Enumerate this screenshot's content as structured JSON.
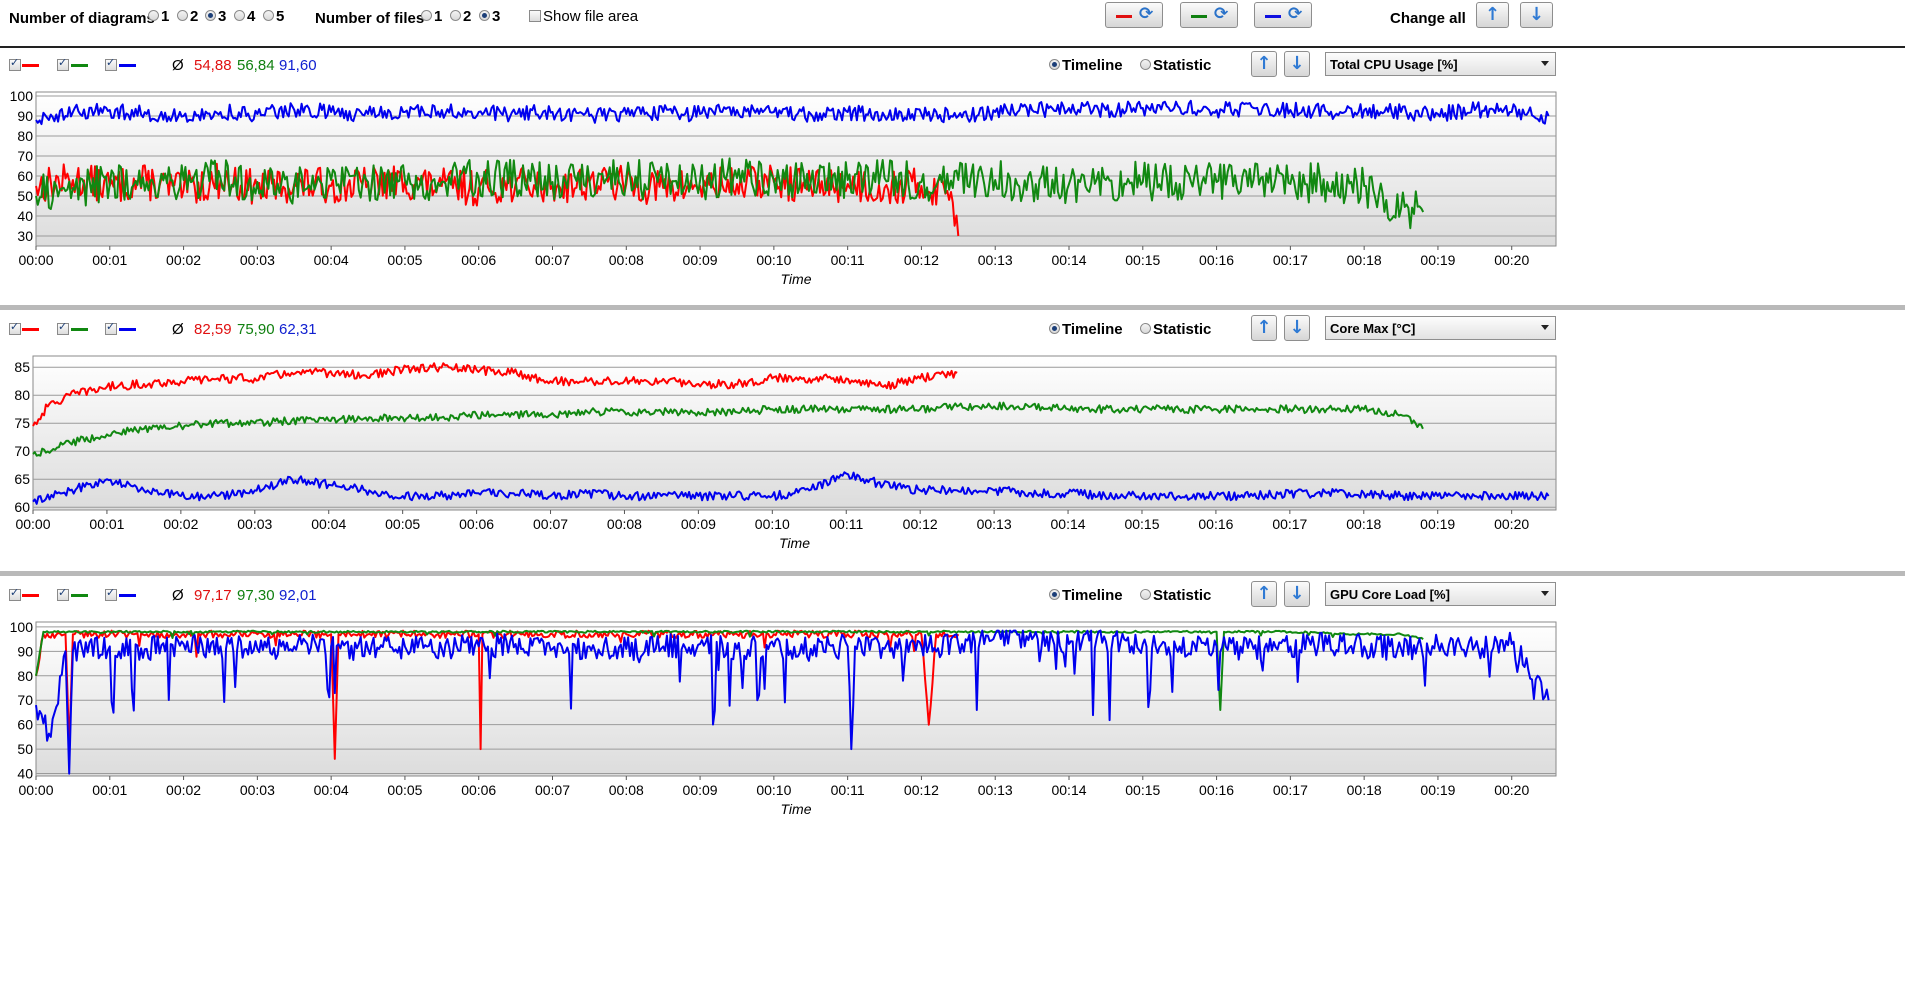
{
  "toolbar": {
    "num_diagrams_label": "Number of diagrams",
    "diagram_options": [
      "1",
      "2",
      "3",
      "4",
      "5"
    ],
    "diagram_selected": "3",
    "num_files_label": "Number of files",
    "file_options": [
      "1",
      "2",
      "3"
    ],
    "file_selected": "3",
    "show_file_area_label": "Show file area",
    "show_file_area_checked": false,
    "change_all_label": "Change all",
    "swap_buttons": [
      {
        "color": "#e01010",
        "icon": "refresh-icon"
      },
      {
        "color": "#108010",
        "icon": "refresh-icon"
      },
      {
        "color": "#1010e0",
        "icon": "refresh-icon"
      }
    ]
  },
  "colors": {
    "red": "#ff0000",
    "green": "#118811",
    "blue": "#0000ee",
    "avg_red": "#e01010",
    "avg_green": "#108010",
    "avg_blue": "#1020d0"
  },
  "avg_symbol": "Ø",
  "view_options": {
    "timeline": "Timeline",
    "statistic": "Statistic"
  },
  "panels": [
    {
      "id": "cpu",
      "metric": "Total CPU Usage [%]",
      "averages": [
        "54,88",
        "56,84",
        "91,60"
      ],
      "view": "Timeline"
    },
    {
      "id": "temp",
      "metric": "Core Max [°C]",
      "averages": [
        "82,59",
        "75,90",
        "62,31"
      ],
      "view": "Timeline"
    },
    {
      "id": "gpu",
      "metric": "GPU Core Load [%]",
      "averages": [
        "97,17",
        "97,30",
        "92,01"
      ],
      "view": "Timeline"
    }
  ],
  "chart_data": [
    {
      "type": "line",
      "title": "Total CPU Usage [%]",
      "xlabel": "Time",
      "ylabel": "",
      "x_ticks": [
        "00:00",
        "00:01",
        "00:02",
        "00:03",
        "00:04",
        "00:05",
        "00:06",
        "00:07",
        "00:08",
        "00:09",
        "00:10",
        "00:11",
        "00:12",
        "00:13",
        "00:14",
        "00:15",
        "00:16",
        "00:17",
        "00:18",
        "00:19",
        "00:20"
      ],
      "xlim_minutes": [
        0,
        20.6
      ],
      "y_ticks": [
        30,
        40,
        50,
        60,
        70,
        80,
        90,
        100
      ],
      "ylim": [
        25,
        102
      ],
      "grid": true,
      "series": [
        {
          "color": "red",
          "average": "54,88",
          "x": [
            0,
            0.5,
            1,
            1.5,
            2,
            2.5,
            3,
            3.5,
            4,
            4.5,
            5,
            5.5,
            6,
            6.5,
            7,
            7.5,
            8,
            8.5,
            9,
            9.5,
            10,
            10.5,
            11,
            11.5,
            12,
            12.4,
            12.5
          ],
          "y": [
            55,
            58,
            55,
            57,
            53,
            58,
            54,
            56,
            55,
            56,
            57,
            55,
            54,
            56,
            55,
            57,
            56,
            54,
            55,
            56,
            57,
            55,
            56,
            54,
            55,
            52,
            30
          ]
        },
        {
          "color": "green",
          "average": "56,84",
          "x": [
            0,
            0.5,
            1,
            1.5,
            2,
            2.5,
            3,
            3.5,
            4,
            4.5,
            5,
            5.5,
            6,
            6.5,
            7,
            7.5,
            8,
            8.5,
            9,
            9.5,
            10,
            10.5,
            11,
            11.5,
            12,
            12.5,
            13,
            13.5,
            14,
            14.5,
            15,
            15.5,
            16,
            16.5,
            17,
            17.5,
            18,
            18.3,
            18.6,
            18.8
          ],
          "y": [
            50,
            54,
            56,
            57,
            58,
            59,
            57,
            56,
            58,
            57,
            58,
            57,
            59,
            58,
            57,
            58,
            59,
            57,
            58,
            59,
            58,
            57,
            58,
            59,
            57,
            58,
            58,
            57,
            56,
            58,
            57,
            56,
            57,
            58,
            56,
            57,
            55,
            48,
            44,
            42
          ]
        },
        {
          "color": "blue",
          "average": "91,60",
          "x": [
            0,
            0.5,
            1,
            1.5,
            2,
            2.5,
            3,
            3.5,
            4,
            4.5,
            5,
            5.5,
            6,
            6.5,
            7,
            7.5,
            8,
            8.5,
            9,
            9.5,
            10,
            10.5,
            11,
            11.5,
            12,
            12.5,
            13,
            13.5,
            14,
            14.5,
            15,
            15.5,
            16,
            16.5,
            17,
            17.5,
            18,
            18.5,
            19,
            19.5,
            20,
            20.5
          ],
          "y": [
            88,
            92,
            93,
            91,
            90,
            92,
            91,
            93,
            92,
            91,
            92,
            93,
            92,
            91,
            92,
            90,
            91,
            92,
            91,
            93,
            92,
            91,
            92,
            90,
            91,
            90,
            92,
            93,
            94,
            93,
            94,
            94,
            93,
            94,
            93,
            92,
            93,
            92,
            91,
            93,
            92,
            90
          ]
        }
      ]
    },
    {
      "type": "line",
      "title": "Core Max [°C]",
      "xlabel": "Time",
      "ylabel": "",
      "x_ticks": [
        "00:00",
        "00:01",
        "00:02",
        "00:03",
        "00:04",
        "00:05",
        "00:06",
        "00:07",
        "00:08",
        "00:09",
        "00:10",
        "00:11",
        "00:12",
        "00:13",
        "00:14",
        "00:15",
        "00:16",
        "00:17",
        "00:18",
        "00:19",
        "00:20"
      ],
      "xlim_minutes": [
        0,
        20.6
      ],
      "y_ticks": [
        60,
        65,
        70,
        75,
        80,
        85
      ],
      "ylim": [
        59.5,
        87
      ],
      "grid": true,
      "series": [
        {
          "color": "red",
          "average": "82,59",
          "x": [
            0,
            0.2,
            0.5,
            1,
            1.5,
            2,
            2.5,
            3,
            3.5,
            4,
            4.5,
            5,
            5.5,
            6,
            6.5,
            7,
            7.5,
            8,
            8.5,
            9,
            9.5,
            10,
            10.5,
            11,
            11.5,
            12,
            12.5
          ],
          "y": [
            74.5,
            78,
            80,
            81.5,
            82,
            82.5,
            83,
            83,
            84,
            84,
            83.5,
            84.5,
            85,
            84.5,
            84,
            82.5,
            82.5,
            82.5,
            82.5,
            82,
            82,
            83,
            83,
            83,
            81.5,
            83,
            84
          ]
        },
        {
          "color": "green",
          "average": "75,90",
          "x": [
            0,
            0.5,
            1,
            1.5,
            2,
            2.5,
            3,
            3.5,
            4,
            4.5,
            5,
            5.5,
            6,
            6.5,
            7,
            7.5,
            8,
            8.5,
            9,
            9.5,
            10,
            10.5,
            11,
            11.5,
            12,
            12.5,
            13,
            13.5,
            14,
            14.5,
            15,
            15.5,
            16,
            16.5,
            17,
            17.5,
            18,
            18.5,
            18.8
          ],
          "y": [
            69.5,
            71.5,
            73,
            74,
            74.5,
            75,
            75,
            75.5,
            75.5,
            76,
            76,
            76,
            76.5,
            76.5,
            76.5,
            77,
            77,
            77,
            77,
            77,
            77.5,
            77.5,
            77.5,
            77.5,
            77.5,
            78,
            78,
            78,
            77.5,
            77.5,
            77.5,
            77.5,
            77.5,
            77.5,
            77.5,
            77.5,
            77.5,
            76.5,
            74
          ]
        },
        {
          "color": "blue",
          "average": "62,31",
          "x": [
            0,
            0.5,
            1,
            1.5,
            2,
            2.5,
            3,
            3.5,
            4,
            4.5,
            5,
            5.5,
            6,
            6.5,
            7,
            7.5,
            8,
            8.5,
            9,
            9.5,
            10,
            10.5,
            11,
            11.5,
            12,
            12.5,
            13,
            13.5,
            14,
            14.5,
            15,
            15.5,
            16,
            16.5,
            17,
            17.5,
            18,
            18.5,
            19,
            19.5,
            20,
            20.5
          ],
          "y": [
            61,
            63,
            65,
            63,
            62,
            62,
            63,
            65,
            64,
            63,
            62,
            62,
            62.5,
            62.5,
            62,
            62.5,
            62,
            62,
            62,
            62,
            62,
            63,
            66,
            64,
            63,
            63,
            63,
            62.5,
            62.5,
            62,
            62,
            62,
            62,
            62,
            62.5,
            62.5,
            62.5,
            62,
            62,
            62,
            62,
            62
          ]
        }
      ]
    },
    {
      "type": "line",
      "title": "GPU Core Load [%]",
      "xlabel": "Time",
      "ylabel": "",
      "x_ticks": [
        "00:00",
        "00:01",
        "00:02",
        "00:03",
        "00:04",
        "00:05",
        "00:06",
        "00:07",
        "00:08",
        "00:09",
        "00:10",
        "00:11",
        "00:12",
        "00:13",
        "00:14",
        "00:15",
        "00:16",
        "00:17",
        "00:18",
        "00:19",
        "00:20"
      ],
      "xlim_minutes": [
        0,
        20.6
      ],
      "y_ticks": [
        40,
        50,
        60,
        70,
        80,
        90,
        100
      ],
      "ylim": [
        39,
        102
      ],
      "grid": true,
      "series": [
        {
          "color": "red",
          "average": "97,17",
          "x": [
            0,
            0.1,
            0.4,
            0.45,
            0.5,
            1,
            1.5,
            2,
            2.5,
            3,
            3.5,
            4,
            4.05,
            4.1,
            4.5,
            5,
            5.5,
            6,
            6.02,
            6.05,
            6.5,
            7,
            7.5,
            8,
            8.5,
            9,
            9.5,
            10,
            10.5,
            11,
            11.5,
            12,
            12.1,
            12.2,
            12.5
          ],
          "y": [
            80,
            97,
            97,
            50,
            97,
            97,
            97,
            97,
            97,
            97,
            97,
            97,
            46,
            97,
            97,
            97,
            97,
            97,
            50,
            97,
            97,
            97,
            97,
            97,
            97,
            97,
            97,
            97,
            97,
            97,
            97,
            97,
            60,
            97,
            97
          ]
        },
        {
          "color": "green",
          "average": "97,30",
          "x": [
            0,
            0.1,
            0.5,
            1,
            2,
            3,
            4,
            5,
            6,
            7,
            8,
            9,
            10,
            11,
            12,
            13,
            14,
            15,
            16,
            16.05,
            16.1,
            17,
            18,
            18.5,
            18.8
          ],
          "y": [
            80,
            98,
            98,
            98,
            98,
            98,
            98,
            98,
            98,
            98,
            98,
            98,
            98,
            98,
            98,
            98,
            98,
            98,
            98,
            66,
            98,
            98,
            97,
            97,
            95
          ]
        },
        {
          "color": "blue",
          "average": "92,01",
          "x": [
            0,
            0.2,
            0.4,
            0.45,
            0.5,
            1,
            1.5,
            2,
            2.5,
            3,
            3.5,
            4,
            4.5,
            5,
            5.5,
            6,
            6.5,
            7,
            7.5,
            8,
            8.5,
            9,
            9.5,
            10,
            10.5,
            11,
            11.05,
            11.1,
            11.5,
            12,
            12.5,
            13,
            13.5,
            14,
            14.5,
            15,
            15.5,
            16,
            16.5,
            17,
            17.5,
            18,
            18.5,
            19,
            19.5,
            20,
            20.5
          ],
          "y": [
            68,
            55,
            90,
            40,
            90,
            92,
            91,
            93,
            92,
            91,
            92,
            92,
            91,
            92,
            91,
            92,
            93,
            91,
            92,
            91,
            92,
            93,
            91,
            92,
            91,
            92,
            50,
            92,
            91,
            92,
            93,
            97,
            95,
            93,
            94,
            93,
            92,
            92,
            91,
            92,
            93,
            92,
            91,
            93,
            92,
            93,
            70
          ]
        }
      ]
    }
  ]
}
